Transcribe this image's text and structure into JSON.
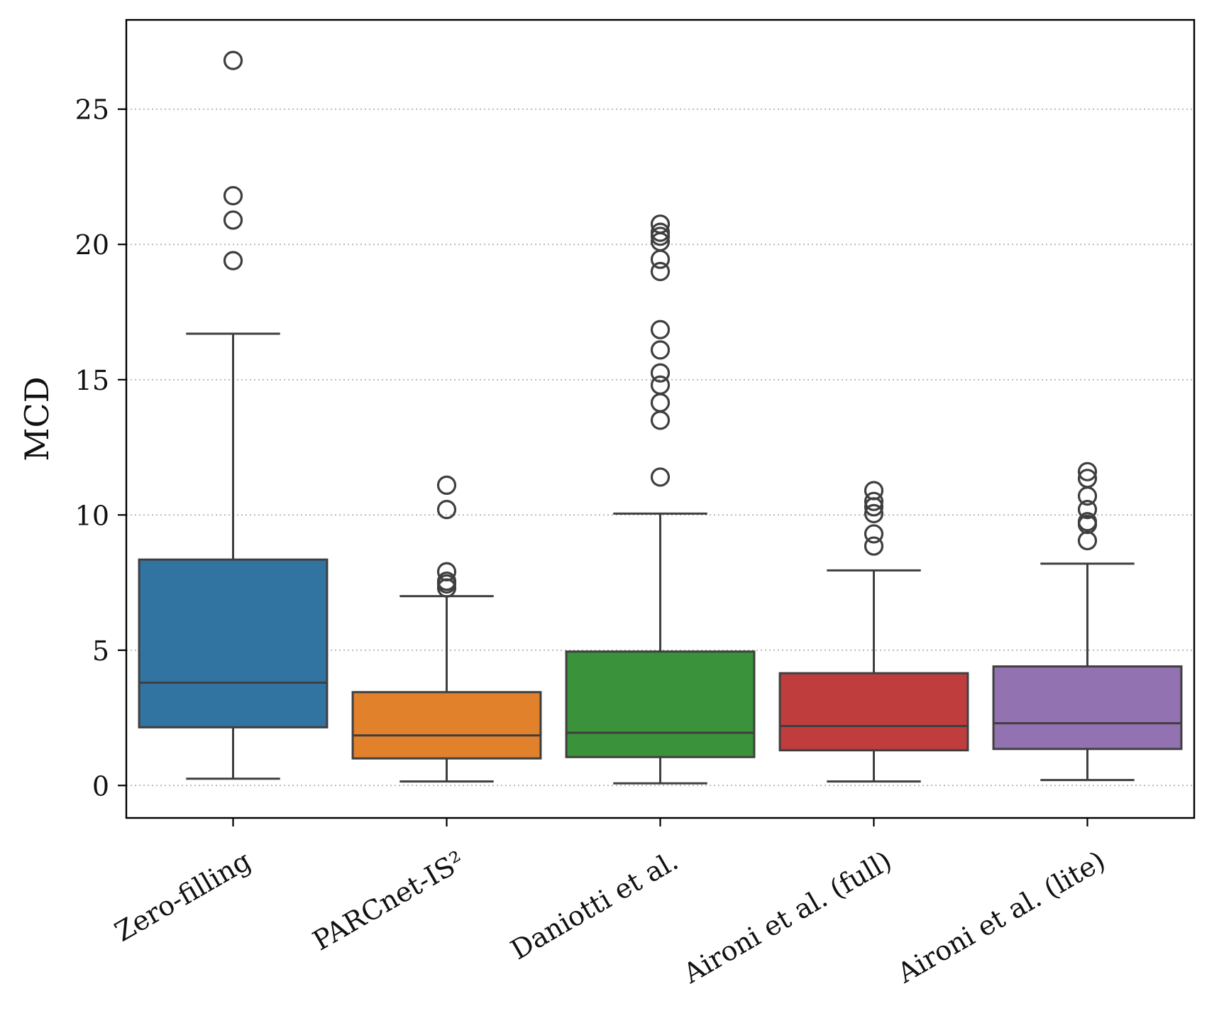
{
  "chart_data": {
    "type": "box",
    "title": "",
    "xlabel": "",
    "ylabel": "MCD",
    "ylim": [
      -1.2,
      28.3
    ],
    "yticks": [
      0,
      5,
      10,
      15,
      20,
      25
    ],
    "ytick_labels": [
      "0",
      "5",
      "10",
      "15",
      "20",
      "25"
    ],
    "grid": "horizontal dotted",
    "categories": [
      "Zero-filling",
      "PARCnet-IS²",
      "Daniotti et al.",
      "Aironi et al. (full)",
      "Aironi et al. (lite)"
    ],
    "series": [
      {
        "name": "Zero-filling",
        "color": "#3274a1",
        "whisker_low": 0.25,
        "q1": 2.15,
        "median": 3.8,
        "q3": 8.35,
        "whisker_high": 16.7,
        "outliers": [
          19.4,
          20.9,
          21.8,
          26.8
        ]
      },
      {
        "name": "PARCnet-IS²",
        "color": "#e1812c",
        "whisker_low": 0.15,
        "q1": 1.0,
        "median": 1.85,
        "q3": 3.45,
        "whisker_high": 7.0,
        "outliers": [
          7.3,
          7.45,
          7.55,
          7.9,
          10.2,
          11.1
        ]
      },
      {
        "name": "Daniotti et al.",
        "color": "#3a923a",
        "whisker_low": 0.08,
        "q1": 1.05,
        "median": 1.95,
        "q3": 4.95,
        "whisker_high": 10.05,
        "outliers": [
          11.4,
          13.5,
          14.15,
          14.8,
          15.25,
          16.1,
          16.85,
          19.0,
          19.45,
          20.1,
          20.3,
          20.45,
          20.75
        ]
      },
      {
        "name": "Aironi et al. (full)",
        "color": "#c03d3e",
        "whisker_low": 0.15,
        "q1": 1.3,
        "median": 2.2,
        "q3": 4.15,
        "whisker_high": 7.95,
        "outliers": [
          8.85,
          9.3,
          10.05,
          10.3,
          10.5,
          10.9
        ]
      },
      {
        "name": "Aironi et al. (lite)",
        "color": "#9372b2",
        "whisker_low": 0.2,
        "q1": 1.35,
        "median": 2.3,
        "q3": 4.4,
        "whisker_high": 8.2,
        "outliers": [
          9.05,
          9.65,
          9.75,
          10.2,
          10.7,
          11.35,
          11.6
        ]
      }
    ]
  }
}
